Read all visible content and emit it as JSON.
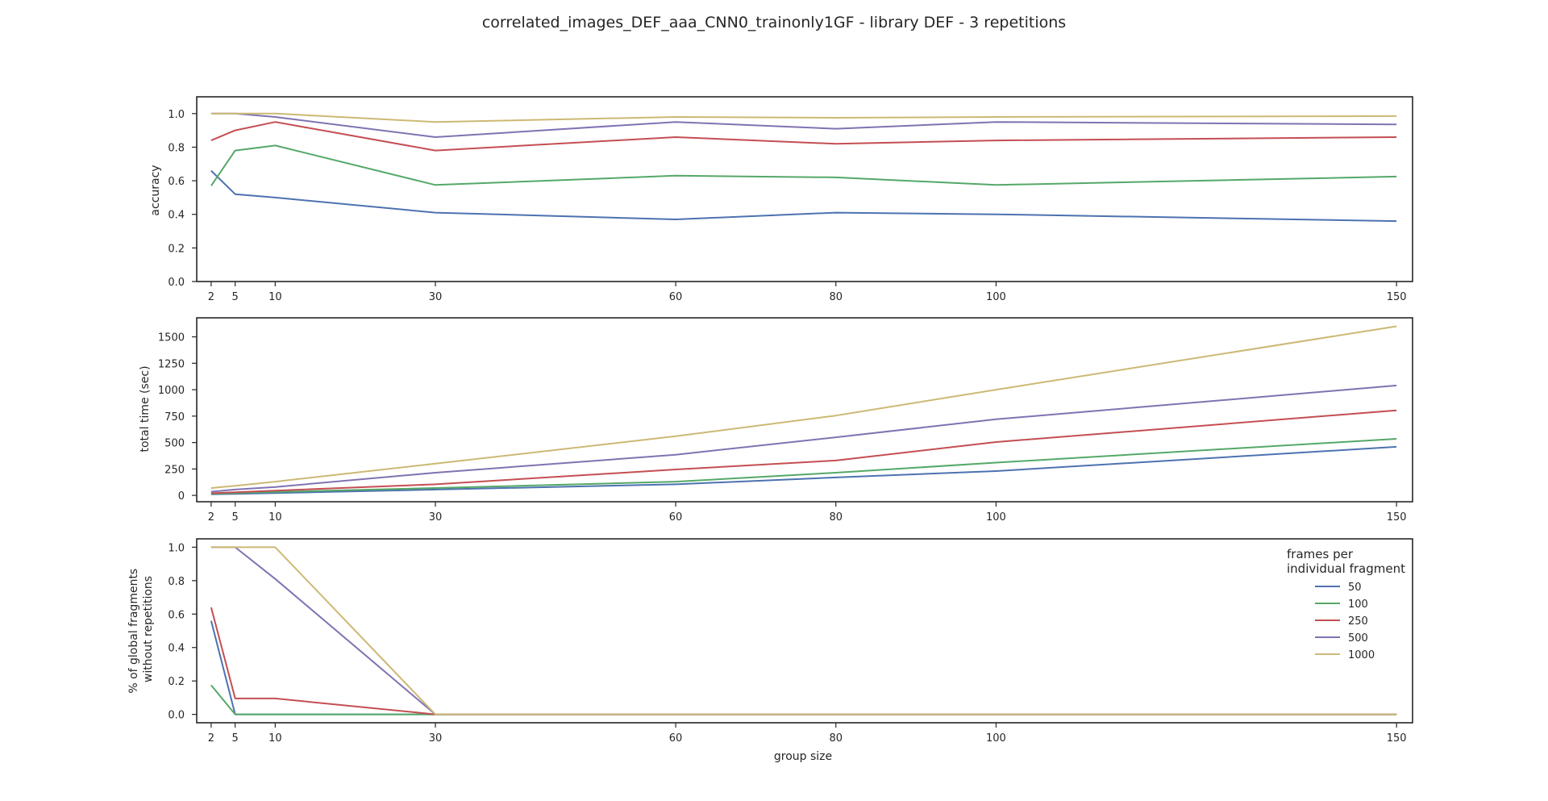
{
  "figure_title": "correlated_images_DEF_aaa_CNN0_trainonly1GF - library DEF - 3 repetitions",
  "legend": {
    "title_line1": "frames per",
    "title_line2": "individual fragment",
    "location": "upper right of bottom panel"
  },
  "colors": {
    "50": "#4c72b0",
    "100": "#55a868",
    "250": "#c44e52",
    "500": "#8172b2",
    "1000": "#ccb974"
  },
  "chart_data": [
    {
      "type": "line",
      "ylabel": "accuracy",
      "xlabel": "",
      "x": [
        2,
        5,
        10,
        30,
        60,
        80,
        100,
        150
      ],
      "xticks": [
        "2",
        "5",
        "10",
        "30",
        "60",
        "80",
        "100",
        "150"
      ],
      "yticks": [
        "0.0",
        "0.2",
        "0.4",
        "0.6",
        "0.8",
        "1.0"
      ],
      "ytick_values": [
        0,
        0.2,
        0.4,
        0.6,
        0.8,
        1.0
      ],
      "xlim": [
        0.2,
        152
      ],
      "ylim": [
        0,
        1.1
      ],
      "grid": false,
      "series": [
        {
          "name": "50",
          "values": [
            0.66,
            0.52,
            0.5,
            0.41,
            0.37,
            0.41,
            0.4,
            0.36
          ]
        },
        {
          "name": "100",
          "values": [
            0.57,
            0.78,
            0.81,
            0.575,
            0.63,
            0.62,
            0.575,
            0.625
          ]
        },
        {
          "name": "250",
          "values": [
            0.84,
            0.9,
            0.95,
            0.78,
            0.86,
            0.82,
            0.84,
            0.86
          ]
        },
        {
          "name": "500",
          "values": [
            1.0,
            1.0,
            0.98,
            0.86,
            0.95,
            0.91,
            0.95,
            0.935
          ]
        },
        {
          "name": "1000",
          "values": [
            1.0,
            1.0,
            1.0,
            0.95,
            0.98,
            0.975,
            0.98,
            0.985
          ]
        }
      ]
    },
    {
      "type": "line",
      "ylabel": "total time (sec)",
      "xlabel": "",
      "x": [
        2,
        5,
        10,
        30,
        60,
        80,
        100,
        150
      ],
      "xticks": [
        "2",
        "5",
        "10",
        "30",
        "60",
        "80",
        "100",
        "150"
      ],
      "yticks": [
        "0",
        "250",
        "500",
        "750",
        "1000",
        "1250",
        "1500"
      ],
      "ytick_values": [
        0,
        250,
        500,
        750,
        1000,
        1250,
        1500
      ],
      "xlim": [
        0.2,
        152
      ],
      "ylim": [
        -60,
        1680
      ],
      "grid": false,
      "series": [
        {
          "name": "50",
          "values": [
            10,
            15,
            22,
            55,
            105,
            170,
            230,
            460
          ]
        },
        {
          "name": "100",
          "values": [
            15,
            22,
            32,
            70,
            130,
            215,
            310,
            535
          ]
        },
        {
          "name": "250",
          "values": [
            20,
            30,
            45,
            105,
            245,
            330,
            505,
            805
          ]
        },
        {
          "name": "500",
          "values": [
            35,
            55,
            80,
            215,
            385,
            550,
            720,
            1040
          ]
        },
        {
          "name": "1000",
          "values": [
            70,
            90,
            130,
            300,
            560,
            755,
            1000,
            1600
          ]
        }
      ]
    },
    {
      "type": "line",
      "ylabel_line1": "% of global fragments",
      "ylabel_line2": "without repetitions",
      "xlabel": "group size",
      "x": [
        2,
        5,
        10,
        30,
        60,
        80,
        100,
        150
      ],
      "xticks": [
        "2",
        "5",
        "10",
        "30",
        "60",
        "80",
        "100",
        "150"
      ],
      "yticks": [
        "0.0",
        "0.2",
        "0.4",
        "0.6",
        "0.8",
        "1.0"
      ],
      "ytick_values": [
        0,
        0.2,
        0.4,
        0.6,
        0.8,
        1.0
      ],
      "xlim": [
        0.2,
        152
      ],
      "ylim": [
        -0.05,
        1.05
      ],
      "grid": false,
      "series": [
        {
          "name": "50",
          "values": [
            0.56,
            0.0,
            0.0,
            0.0,
            0.0,
            0.0,
            0.0,
            0.0
          ]
        },
        {
          "name": "100",
          "values": [
            0.175,
            0.0,
            0.0,
            0.0,
            0.0,
            0.0,
            0.0,
            0.0
          ]
        },
        {
          "name": "250",
          "values": [
            0.64,
            0.095,
            0.095,
            0.0,
            0.0,
            0.0,
            0.0,
            0.0
          ]
        },
        {
          "name": "500",
          "values": [
            1.0,
            1.0,
            0.81,
            0.0,
            0.0,
            0.0,
            0.0,
            0.0
          ]
        },
        {
          "name": "1000",
          "values": [
            1.0,
            1.0,
            1.0,
            0.0,
            0.0,
            0.0,
            0.0,
            0.0
          ]
        }
      ]
    }
  ]
}
